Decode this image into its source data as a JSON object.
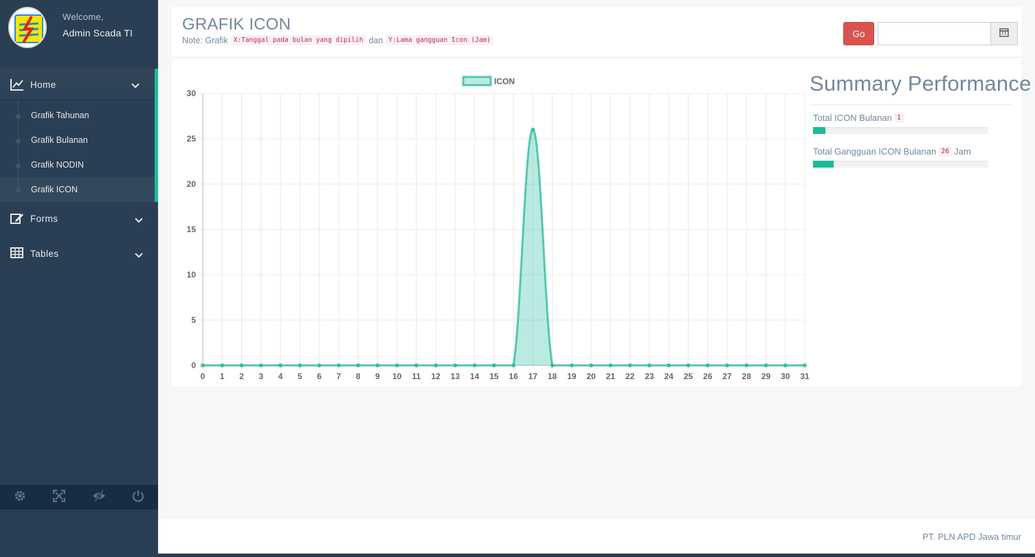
{
  "profile": {
    "welcome": "Welcome,",
    "username": "Admin Scada TI",
    "avatar_icon": "pln-logo-icon"
  },
  "sidebar": {
    "home": {
      "label": "Home",
      "icon": "line-chart-icon"
    },
    "submenu": [
      {
        "label": "Grafik Tahunan"
      },
      {
        "label": "Grafik Bulanan"
      },
      {
        "label": "Grafik NODIN"
      },
      {
        "label": "Grafik ICON",
        "active": true
      }
    ],
    "forms": {
      "label": "Forms",
      "icon": "edit-icon"
    },
    "tables": {
      "label": "Tables",
      "icon": "table-icon"
    },
    "footer_icons": [
      "gear-icon",
      "fullscreen-icon",
      "eye-slash-icon",
      "power-icon"
    ]
  },
  "header": {
    "title": "GRAFIK ICON",
    "note_prefix": "Note: Grafik",
    "note_x": "X:Tanggal pada bulan yang dipilih",
    "note_and": "dan",
    "note_y": "Y:Lama gangguan Icon (Jam)",
    "go_label": "Go",
    "date_value": "",
    "calendar_icon": "calendar-icon"
  },
  "summary": {
    "title": "Summary Performance",
    "total_icon_label": "Total ICON Bulanan",
    "total_icon_value": "1",
    "total_icon_progress": 0.07,
    "total_gangguan_label": "Total Gangguan ICON Bulanan",
    "total_gangguan_value": "26",
    "total_gangguan_unit": "Jam",
    "total_gangguan_progress": 0.12
  },
  "footer": {
    "text": "PT. PLN APD Jawa timur"
  },
  "colors": {
    "accent": "#1abb9c",
    "danger": "#d9534f",
    "sidebar": "#2a3f54",
    "text": "#73879c"
  },
  "chart_data": {
    "type": "line",
    "fill": true,
    "series": [
      {
        "name": "ICON",
        "color": "#1abb9c",
        "values": [
          0,
          0,
          0,
          0,
          0,
          0,
          0,
          0,
          0,
          0,
          0,
          0,
          0,
          0,
          0,
          0,
          0,
          26,
          0,
          0,
          0,
          0,
          0,
          0,
          0,
          0,
          0,
          0,
          0,
          0,
          0,
          0
        ]
      }
    ],
    "x": [
      0,
      1,
      2,
      3,
      4,
      5,
      6,
      7,
      8,
      9,
      10,
      11,
      12,
      13,
      14,
      15,
      16,
      17,
      18,
      19,
      20,
      21,
      22,
      23,
      24,
      25,
      26,
      27,
      28,
      29,
      30,
      31
    ],
    "yticks": [
      0,
      5,
      10,
      15,
      20,
      25,
      30
    ],
    "ylim": [
      0,
      30
    ],
    "xlabel": "",
    "ylabel": "",
    "legend": "top",
    "grid": true
  }
}
